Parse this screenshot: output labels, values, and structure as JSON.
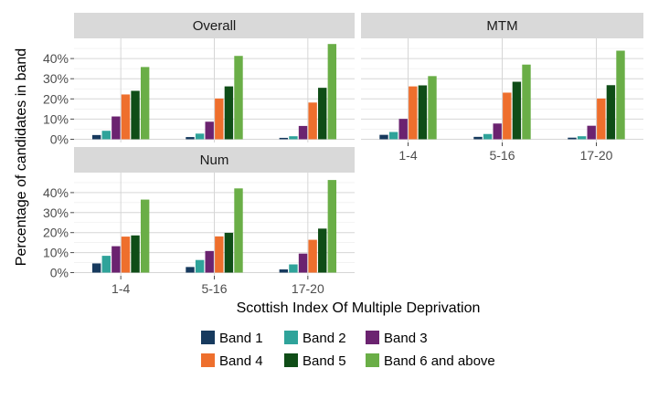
{
  "chart_data": {
    "type": "bar",
    "xlabel": "Scottish Index Of Multiple Deprivation",
    "ylabel": "Percentage of candidates in band",
    "ylim": [
      0,
      0.5
    ],
    "yticks": [
      0,
      0.1,
      0.2,
      0.3,
      0.4
    ],
    "ytick_labels": [
      "0%",
      "10%",
      "20%",
      "30%",
      "40%"
    ],
    "grid": true,
    "legend_position": "bottom",
    "categories": [
      "1-4",
      "5-16",
      "17-20"
    ],
    "series": [
      {
        "name": "Band 1",
        "color": "#173a5e"
      },
      {
        "name": "Band 2",
        "color": "#2fa39a"
      },
      {
        "name": "Band 3",
        "color": "#6b2370"
      },
      {
        "name": "Band 4",
        "color": "#ee6f2d"
      },
      {
        "name": "Band 5",
        "color": "#0f4d17"
      },
      {
        "name": "Band 6 and above",
        "color": "#6aae47"
      }
    ],
    "panels": [
      {
        "title": "Overall",
        "values": [
          [
            0.021,
            0.042,
            0.113,
            0.222,
            0.24,
            0.358
          ],
          [
            0.011,
            0.028,
            0.087,
            0.202,
            0.262,
            0.413
          ],
          [
            0.007,
            0.015,
            0.066,
            0.182,
            0.255,
            0.472
          ]
        ]
      },
      {
        "title": "MTM",
        "values": [
          [
            0.022,
            0.036,
            0.101,
            0.262,
            0.267,
            0.313
          ],
          [
            0.012,
            0.026,
            0.078,
            0.231,
            0.285,
            0.37
          ],
          [
            0.008,
            0.015,
            0.067,
            0.202,
            0.268,
            0.439
          ]
        ]
      },
      {
        "title": "Num",
        "values": [
          [
            0.046,
            0.084,
            0.132,
            0.18,
            0.186,
            0.365
          ],
          [
            0.028,
            0.063,
            0.108,
            0.181,
            0.199,
            0.421
          ],
          [
            0.016,
            0.041,
            0.095,
            0.164,
            0.22,
            0.463
          ]
        ]
      }
    ]
  }
}
